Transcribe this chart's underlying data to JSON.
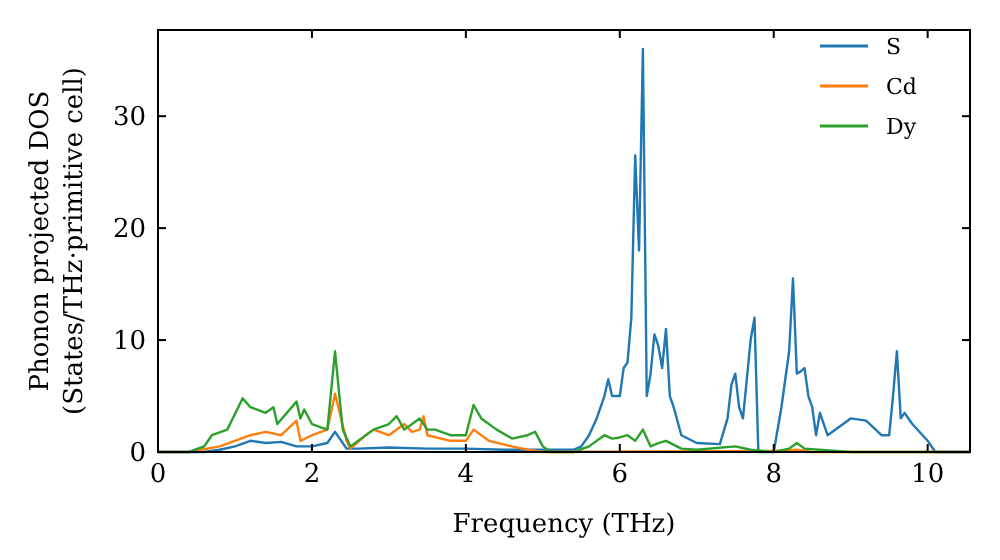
{
  "chart_data": {
    "type": "line",
    "xlabel": "Frequency (THz)",
    "ylabel": "Phonon projected DOS\n(States/THz·primitive cell)",
    "xlim": [
      0,
      10.55
    ],
    "ylim": [
      0,
      37.7
    ],
    "xticks": [
      0,
      2,
      4,
      6,
      8,
      10
    ],
    "yticks": [
      0,
      10,
      20,
      30
    ],
    "legend": "top right",
    "grid": false,
    "marker": "none",
    "line_style": "solid",
    "series": [
      {
        "name": "S",
        "color": "#1f77b4",
        "x": [
          0,
          0.6,
          0.8,
          1.0,
          1.2,
          1.4,
          1.6,
          1.8,
          2.0,
          2.2,
          2.3,
          2.45,
          2.6,
          3.0,
          3.5,
          4.0,
          4.5,
          5.0,
          5.4,
          5.5,
          5.6,
          5.7,
          5.8,
          5.85,
          5.9,
          6.0,
          6.05,
          6.1,
          6.15,
          6.2,
          6.25,
          6.3,
          6.35,
          6.4,
          6.45,
          6.5,
          6.55,
          6.6,
          6.65,
          6.7,
          6.8,
          7.0,
          7.3,
          7.4,
          7.45,
          7.5,
          7.55,
          7.6,
          7.7,
          7.75,
          7.8,
          8.0,
          8.1,
          8.2,
          8.25,
          8.3,
          8.35,
          8.4,
          8.45,
          8.5,
          8.55,
          8.6,
          8.7,
          9.0,
          9.2,
          9.4,
          9.5,
          9.55,
          9.6,
          9.65,
          9.7,
          9.8,
          10.0,
          10.1,
          10.55
        ],
        "values": [
          0,
          0,
          0.2,
          0.5,
          1.0,
          0.8,
          0.9,
          0.5,
          0.5,
          0.8,
          1.8,
          0.3,
          0.3,
          0.4,
          0.3,
          0.3,
          0.2,
          0.2,
          0.2,
          0.5,
          1.5,
          3,
          5,
          6.5,
          5,
          5,
          7.5,
          8,
          12,
          26.5,
          18,
          36,
          5,
          7,
          10.5,
          9.5,
          7.5,
          11,
          5,
          4,
          1.5,
          0.8,
          0.7,
          3,
          6,
          7,
          4,
          3,
          10,
          12,
          0,
          0,
          4,
          9,
          15.5,
          7,
          7.2,
          7.5,
          5,
          4,
          1.5,
          3.5,
          1.5,
          3,
          2.8,
          1.5,
          1.5,
          5,
          9,
          3,
          3.5,
          2.5,
          1,
          0,
          0
        ]
      },
      {
        "name": "Cd",
        "color": "#ff7f0e",
        "x": [
          0,
          0.4,
          0.8,
          1.0,
          1.2,
          1.4,
          1.6,
          1.8,
          1.85,
          2.0,
          2.2,
          2.3,
          2.45,
          2.5,
          2.7,
          2.8,
          3.0,
          3.2,
          3.3,
          3.4,
          3.45,
          3.5,
          3.8,
          4.0,
          4.1,
          4.3,
          4.6,
          4.8,
          5.0,
          8.0,
          8.3,
          8.5,
          10.55
        ],
        "values": [
          0,
          0,
          0.5,
          1,
          1.5,
          1.8,
          1.5,
          2.8,
          1,
          1.5,
          2.0,
          5.2,
          1,
          0.3,
          1.5,
          2,
          1.5,
          2.5,
          1.8,
          2.0,
          3.2,
          1.5,
          1,
          1.0,
          2,
          1,
          0.5,
          0.2,
          0,
          0.1,
          0.2,
          0,
          0
        ]
      },
      {
        "name": "Dy",
        "color": "#2ca02c",
        "x": [
          0,
          0.4,
          0.6,
          0.7,
          0.9,
          1.1,
          1.2,
          1.4,
          1.5,
          1.55,
          1.8,
          1.85,
          1.9,
          2.0,
          2.2,
          2.3,
          2.4,
          2.5,
          2.8,
          3.0,
          3.1,
          3.2,
          3.4,
          3.5,
          3.6,
          3.8,
          4.0,
          4.1,
          4.2,
          4.4,
          4.6,
          4.8,
          4.9,
          5.0,
          5.1,
          5.4,
          5.6,
          5.8,
          5.9,
          6.0,
          6.1,
          6.2,
          6.3,
          6.4,
          6.5,
          6.6,
          6.8,
          7.0,
          7.5,
          7.7,
          8.0,
          8.2,
          8.3,
          8.4,
          9.0,
          10.55
        ],
        "values": [
          0,
          0,
          0.5,
          1.5,
          2,
          4.8,
          4.0,
          3.5,
          4,
          2.5,
          4.5,
          3,
          3.8,
          2.5,
          2.0,
          9,
          2,
          0.5,
          2,
          2.5,
          3.2,
          2,
          3,
          2,
          2.0,
          1.5,
          1.5,
          4.2,
          3,
          2,
          1.2,
          1.5,
          1.8,
          0.5,
          0,
          0,
          0.5,
          1.5,
          1.2,
          1.3,
          1.5,
          1.0,
          2.0,
          0.5,
          0.8,
          1.0,
          0.3,
          0.2,
          0.5,
          0.2,
          0,
          0.3,
          0.8,
          0.3,
          0,
          0
        ]
      }
    ]
  }
}
